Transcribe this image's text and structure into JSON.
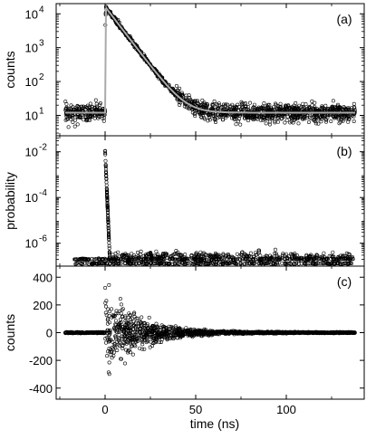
{
  "figure": {
    "xlabel": "time (ns)",
    "x_ticks": [
      0,
      50,
      100
    ],
    "xlim": [
      -27,
      143
    ]
  },
  "chart_data": [
    {
      "type": "scatter",
      "panel_tag": "(a)",
      "ylabel": "counts",
      "yscale": "log",
      "ylim": [
        2.5,
        20000
      ],
      "y_ticks": [
        {
          "value": 10,
          "label": "10",
          "exp": "1"
        },
        {
          "value": 100,
          "label": "10",
          "exp": "2"
        },
        {
          "value": 1000,
          "label": "10",
          "exp": "3"
        },
        {
          "value": 10000,
          "label": "10",
          "exp": "4"
        }
      ],
      "series": [
        {
          "kind": "markers",
          "color": "#000000",
          "rise_x": 0,
          "peak_x": 0.5,
          "peak": 15000,
          "decay_tau_ns": 6.2,
          "background": 12
        },
        {
          "kind": "fit-line",
          "color": "#aaaaaa",
          "rise_x": 0,
          "peak_x": 0.5,
          "peak": 15000,
          "decay_tau_ns": 6.2,
          "background": 12
        }
      ],
      "grid": false
    },
    {
      "type": "scatter",
      "panel_tag": "(b)",
      "ylabel": "probability",
      "yscale": "log",
      "ylim": [
        1e-07,
        0.05
      ],
      "y_ticks": [
        {
          "value": 0.01,
          "label": "10",
          "exp": "-2"
        },
        {
          "value": 0.0001,
          "label": "10",
          "exp": "-4"
        },
        {
          "value": 1e-06,
          "label": "10",
          "exp": "-6"
        }
      ],
      "floor_levels": [
        2e-07,
        1.3e-07
      ],
      "x_range": [
        -17,
        137
      ],
      "peaks": [
        {
          "x": 0,
          "y": 0.012
        },
        {
          "x": 12.5,
          "y": 1.5e-07
        },
        {
          "x": 25,
          "y": 4e-07
        }
      ],
      "grid": false
    },
    {
      "type": "scatter",
      "panel_tag": "(c)",
      "ylabel": "counts",
      "yscale": "linear",
      "ylim": [
        -480,
        480
      ],
      "y_ticks": [
        {
          "value": 400,
          "label": "400"
        },
        {
          "value": 200,
          "label": "200"
        },
        {
          "value": 0,
          "label": "0"
        },
        {
          "value": -200,
          "label": "-200"
        },
        {
          "value": -400,
          "label": "-400"
        }
      ],
      "x_range": [
        -22,
        138
      ],
      "envelope": {
        "onset_x": 0,
        "max_amplitude": 400,
        "decay_tau_ns": 18
      },
      "grid": false
    }
  ]
}
